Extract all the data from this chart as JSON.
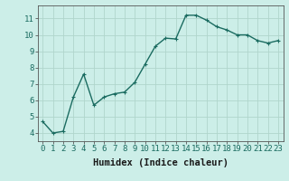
{
  "x": [
    0,
    1,
    2,
    3,
    4,
    5,
    6,
    7,
    8,
    9,
    10,
    11,
    12,
    13,
    14,
    15,
    16,
    17,
    18,
    19,
    20,
    21,
    22,
    23
  ],
  "y": [
    4.7,
    4.0,
    4.1,
    6.2,
    7.6,
    5.7,
    6.2,
    6.4,
    6.5,
    7.1,
    8.2,
    9.3,
    9.8,
    9.75,
    11.2,
    11.2,
    10.9,
    10.5,
    10.3,
    10.0,
    10.0,
    9.65,
    9.5,
    9.65
  ],
  "xlabel": "Humidex (Indice chaleur)",
  "xlim": [
    -0.5,
    23.5
  ],
  "ylim": [
    3.5,
    11.8
  ],
  "yticks": [
    4,
    5,
    6,
    7,
    8,
    9,
    10,
    11
  ],
  "xticks": [
    0,
    1,
    2,
    3,
    4,
    5,
    6,
    7,
    8,
    9,
    10,
    11,
    12,
    13,
    14,
    15,
    16,
    17,
    18,
    19,
    20,
    21,
    22,
    23
  ],
  "line_color": "#1a6b60",
  "marker_color": "#1a6b60",
  "bg_color": "#cceee8",
  "grid_color": "#b0d5cc",
  "tick_label_color": "#1a6b60",
  "xlabel_color": "#1a1a1a",
  "xlabel_fontsize": 7.5,
  "tick_fontsize": 6.5,
  "linewidth": 1.0,
  "markersize": 2.5
}
